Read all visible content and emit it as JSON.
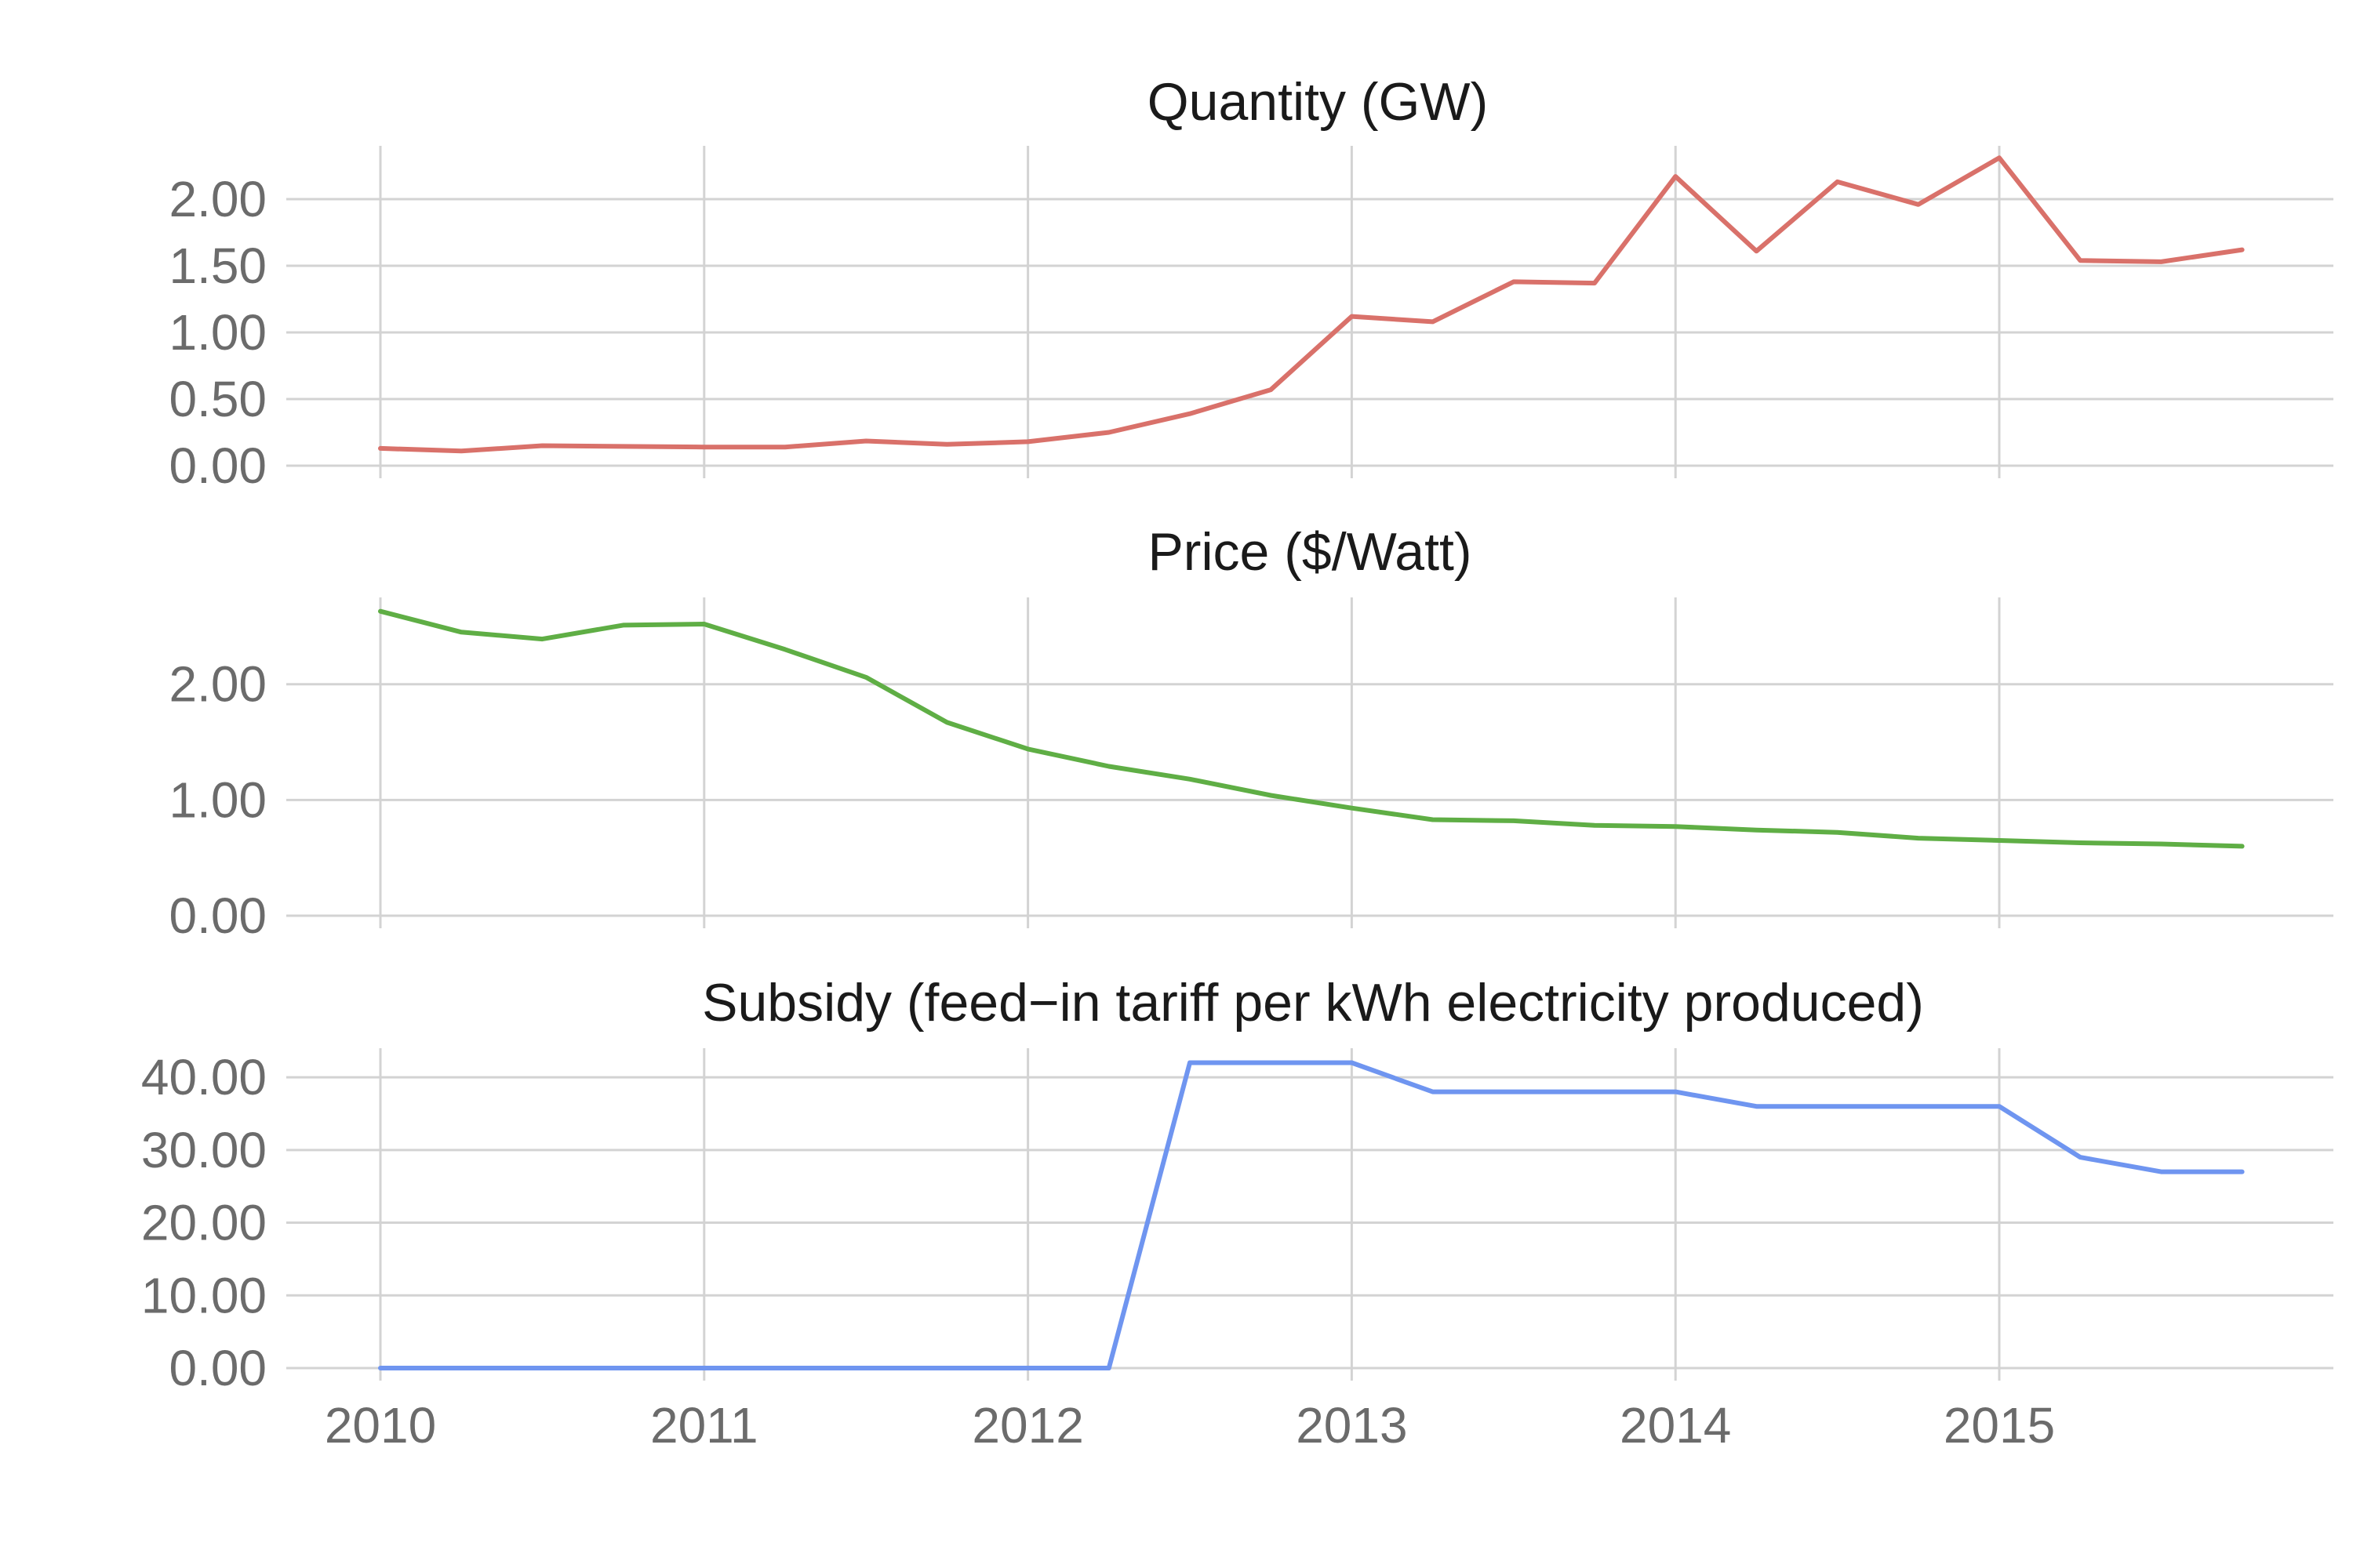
{
  "chart_data": [
    {
      "type": "line",
      "title": "Quantity (GW)",
      "xlabel": "",
      "ylabel": "",
      "x": [
        2010,
        2010.25,
        2010.5,
        2010.75,
        2011,
        2011.25,
        2011.5,
        2011.75,
        2012,
        2012.25,
        2012.5,
        2012.75,
        2013,
        2013.25,
        2013.5,
        2013.75,
        2014,
        2014.25,
        2014.5,
        2014.75,
        2015,
        2015.25,
        2015.5,
        2015.75
      ],
      "series": [
        {
          "values": [
            0.13,
            0.11,
            0.15,
            0.145,
            0.14,
            0.14,
            0.185,
            0.16,
            0.18,
            0.25,
            0.39,
            0.57,
            1.12,
            1.08,
            1.38,
            1.37,
            2.17,
            1.61,
            2.13,
            1.96,
            2.31,
            1.54,
            1.53,
            1.62
          ],
          "color": "#d9716a"
        }
      ],
      "yticks": [
        0,
        0.5,
        1,
        1.5,
        2
      ],
      "ytick_labels": [
        "0.00",
        "0.50",
        "1.00",
        "1.50",
        "2.00"
      ],
      "ylim": [
        0,
        2.4
      ],
      "xlim": [
        2009.7,
        2015.98
      ],
      "grid": true,
      "legend": "none"
    },
    {
      "type": "line",
      "title": "Price ($/Watt)",
      "xlabel": "",
      "ylabel": "",
      "x": [
        2010,
        2010.25,
        2010.5,
        2010.75,
        2011,
        2011.25,
        2011.5,
        2011.75,
        2012,
        2012.25,
        2012.5,
        2012.75,
        2013,
        2013.25,
        2013.5,
        2013.75,
        2014,
        2014.25,
        2014.5,
        2014.75,
        2015,
        2015.25,
        2015.5,
        2015.75
      ],
      "series": [
        {
          "values": [
            2.63,
            2.45,
            2.39,
            2.51,
            2.52,
            2.3,
            2.06,
            1.67,
            1.44,
            1.29,
            1.18,
            1.04,
            0.93,
            0.83,
            0.82,
            0.78,
            0.77,
            0.74,
            0.72,
            0.67,
            0.65,
            0.63,
            0.62,
            0.6
          ],
          "color": "#5fae45"
        }
      ],
      "yticks": [
        0,
        1,
        2
      ],
      "ytick_labels": [
        "0.00",
        "1.00",
        "2.00"
      ],
      "ylim": [
        0,
        2.75
      ],
      "xlim": [
        2009.7,
        2015.98
      ],
      "grid": true,
      "legend": "none"
    },
    {
      "type": "line",
      "title": "Subsidy (feed−in tariff per kWh electricity produced)",
      "xlabel": "",
      "ylabel": "",
      "x": [
        2010,
        2010.25,
        2010.5,
        2010.75,
        2011,
        2011.25,
        2011.5,
        2011.75,
        2012,
        2012.25,
        2012.5,
        2012.75,
        2013,
        2013.25,
        2013.5,
        2013.75,
        2014,
        2014.25,
        2014.5,
        2014.75,
        2015,
        2015.25,
        2015.5,
        2015.75
      ],
      "series": [
        {
          "values": [
            0,
            0,
            0,
            0,
            0,
            0,
            0,
            0,
            0,
            0,
            42,
            42,
            42,
            38,
            38,
            38,
            38,
            36,
            36,
            36,
            36,
            29,
            27,
            27
          ],
          "color": "#6f95f0"
        }
      ],
      "yticks": [
        0,
        10,
        20,
        30,
        40
      ],
      "ytick_labels": [
        "0.00",
        "10.00",
        "20.00",
        "30.00",
        "40.00"
      ],
      "ylim": [
        0,
        44
      ],
      "xlim": [
        2009.7,
        2015.98
      ],
      "xticks": [
        2010,
        2011,
        2012,
        2013,
        2014,
        2015
      ],
      "xtick_labels": [
        "2010",
        "2011",
        "2012",
        "2013",
        "2014",
        "2015"
      ],
      "grid": true,
      "legend": "none"
    }
  ]
}
